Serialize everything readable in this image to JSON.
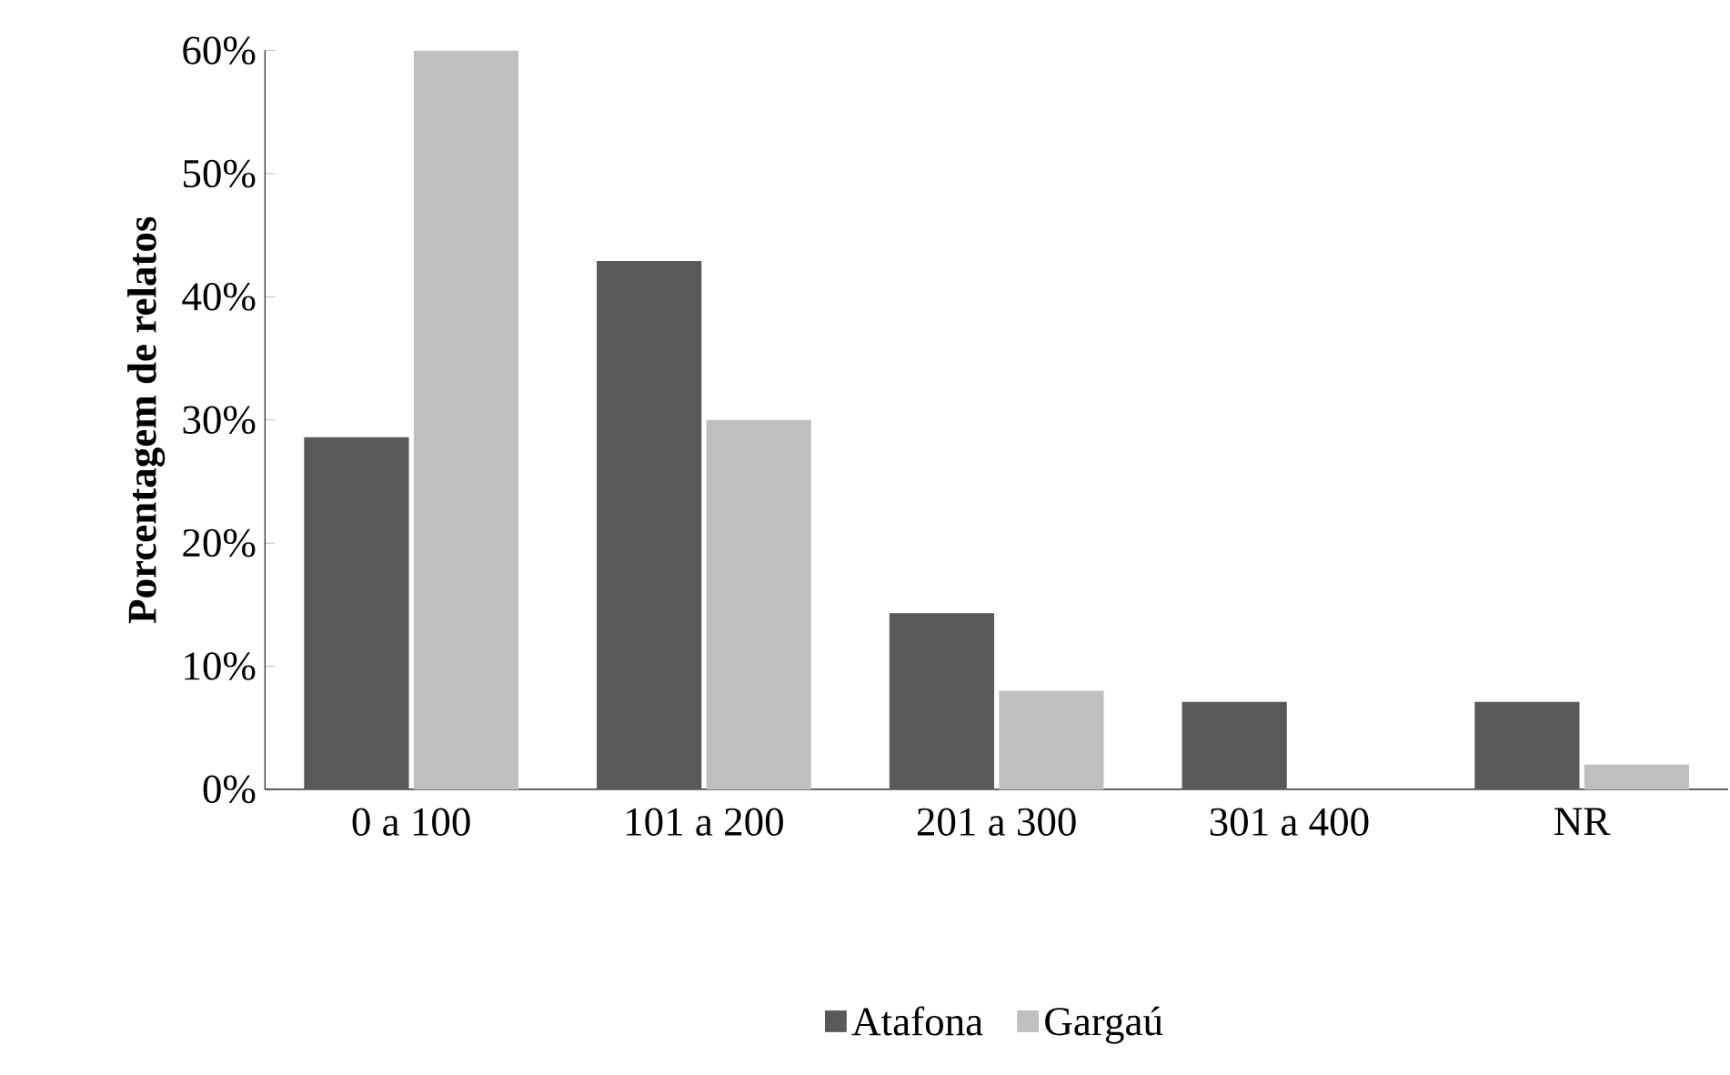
{
  "chart_data": {
    "type": "bar",
    "ylabel": "Porcentagem de relatos",
    "categories": [
      "0 a 100",
      "101 a 200",
      "201 a 300",
      "301 a 400",
      "NR"
    ],
    "series": [
      {
        "name": "Atafona",
        "color": "#595959",
        "values": [
          28.6,
          42.9,
          14.3,
          7.1,
          7.1
        ]
      },
      {
        "name": "Gargaú",
        "color": "#bfbfbf",
        "values": [
          60,
          30,
          8,
          0,
          2
        ]
      }
    ],
    "ylim": [
      0,
      60
    ],
    "yticks": [
      {
        "value": 0,
        "label": "0%"
      },
      {
        "value": 10,
        "label": "10%"
      },
      {
        "value": 20,
        "label": "20%"
      },
      {
        "value": 30,
        "label": "30%"
      },
      {
        "value": 40,
        "label": "40%"
      },
      {
        "value": 50,
        "label": "50%"
      },
      {
        "value": 60,
        "label": "60%"
      }
    ],
    "grid": false,
    "legend": "bottom"
  }
}
